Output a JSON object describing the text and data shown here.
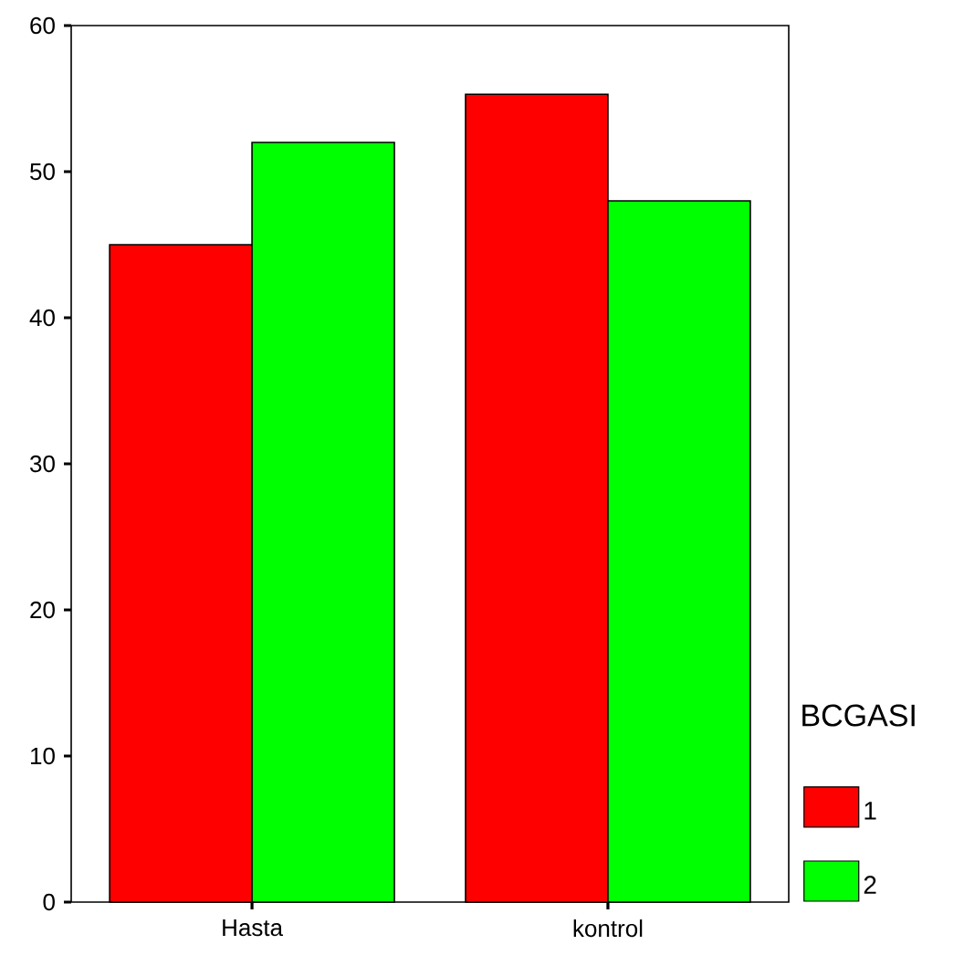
{
  "chart_data": {
    "type": "bar",
    "categories": [
      "Hasta",
      "kontrol"
    ],
    "legend_title": "BCGASI",
    "series": [
      {
        "name": "1",
        "color": "#ff0000",
        "values": [
          45,
          55.3
        ]
      },
      {
        "name": "2",
        "color": "#00ff00",
        "values": [
          52,
          48
        ]
      }
    ],
    "ylim": [
      0,
      60
    ],
    "yticks": [
      0,
      10,
      20,
      30,
      40,
      50,
      60
    ],
    "legend": "bottom right"
  }
}
